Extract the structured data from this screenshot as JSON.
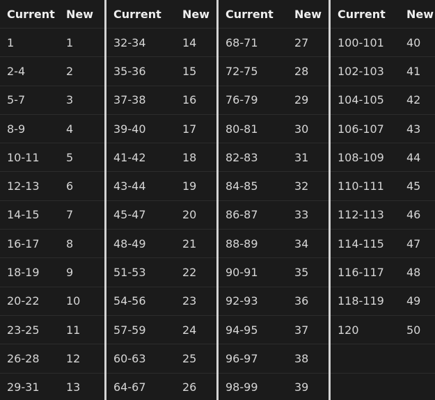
{
  "headers": {
    "current": "Current",
    "new": "New"
  },
  "tables": [
    {
      "rows": [
        {
          "current": "1",
          "new": "1"
        },
        {
          "current": "2-4",
          "new": "2"
        },
        {
          "current": "5-7",
          "new": "3"
        },
        {
          "current": "8-9",
          "new": "4"
        },
        {
          "current": "10-11",
          "new": "5"
        },
        {
          "current": "12-13",
          "new": "6"
        },
        {
          "current": "14-15",
          "new": "7"
        },
        {
          "current": "16-17",
          "new": "8"
        },
        {
          "current": "18-19",
          "new": "9"
        },
        {
          "current": "20-22",
          "new": "10"
        },
        {
          "current": "23-25",
          "new": "11"
        },
        {
          "current": "26-28",
          "new": "12"
        },
        {
          "current": "29-31",
          "new": "13"
        }
      ]
    },
    {
      "rows": [
        {
          "current": "32-34",
          "new": "14"
        },
        {
          "current": "35-36",
          "new": "15"
        },
        {
          "current": "37-38",
          "new": "16"
        },
        {
          "current": "39-40",
          "new": "17"
        },
        {
          "current": "41-42",
          "new": "18"
        },
        {
          "current": "43-44",
          "new": "19"
        },
        {
          "current": "45-47",
          "new": "20"
        },
        {
          "current": "48-49",
          "new": "21"
        },
        {
          "current": "51-53",
          "new": "22"
        },
        {
          "current": "54-56",
          "new": "23"
        },
        {
          "current": "57-59",
          "new": "24"
        },
        {
          "current": "60-63",
          "new": "25"
        },
        {
          "current": "64-67",
          "new": "26"
        }
      ]
    },
    {
      "rows": [
        {
          "current": "68-71",
          "new": "27"
        },
        {
          "current": "72-75",
          "new": "28"
        },
        {
          "current": "76-79",
          "new": "29"
        },
        {
          "current": "80-81",
          "new": "30"
        },
        {
          "current": "82-83",
          "new": "31"
        },
        {
          "current": "84-85",
          "new": "32"
        },
        {
          "current": "86-87",
          "new": "33"
        },
        {
          "current": "88-89",
          "new": "34"
        },
        {
          "current": "90-91",
          "new": "35"
        },
        {
          "current": "92-93",
          "new": "36"
        },
        {
          "current": "94-95",
          "new": "37"
        },
        {
          "current": "96-97",
          "new": "38"
        },
        {
          "current": "98-99",
          "new": "39"
        }
      ]
    },
    {
      "rows": [
        {
          "current": "100-101",
          "new": "40"
        },
        {
          "current": "102-103",
          "new": "41"
        },
        {
          "current": "104-105",
          "new": "42"
        },
        {
          "current": "106-107",
          "new": "43"
        },
        {
          "current": "108-109",
          "new": "44"
        },
        {
          "current": "110-111",
          "new": "45"
        },
        {
          "current": "112-113",
          "new": "46"
        },
        {
          "current": "114-115",
          "new": "47"
        },
        {
          "current": "116-117",
          "new": "48"
        },
        {
          "current": "118-119",
          "new": "49"
        },
        {
          "current": "120",
          "new": "50"
        },
        {
          "current": "",
          "new": ""
        },
        {
          "current": "",
          "new": ""
        }
      ]
    }
  ]
}
